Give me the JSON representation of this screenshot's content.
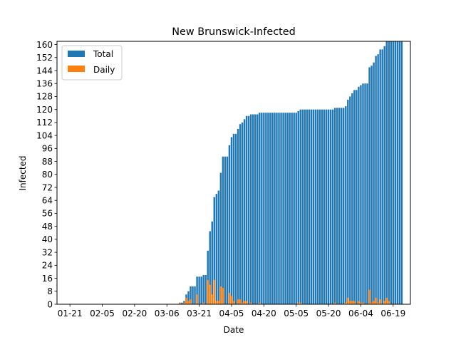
{
  "chart_data": {
    "type": "bar",
    "title": "New Brunswick-Infected",
    "xlabel": "Date",
    "ylabel": "Infected",
    "xlim": [
      "2020-01-15",
      "2020-06-27"
    ],
    "ylim": [
      0,
      162
    ],
    "y_ticks": [
      0,
      8,
      16,
      24,
      32,
      40,
      48,
      56,
      64,
      72,
      80,
      88,
      96,
      104,
      112,
      120,
      128,
      136,
      144,
      152,
      160
    ],
    "x_tick_labels": [
      "01-21",
      "02-05",
      "02-20",
      "03-06",
      "03-21",
      "04-05",
      "04-20",
      "05-05",
      "05-20",
      "06-04",
      "06-19"
    ],
    "x_tick_dates": [
      "2020-01-21",
      "2020-02-05",
      "2020-02-20",
      "2020-03-06",
      "2020-03-21",
      "2020-04-05",
      "2020-04-20",
      "2020-05-05",
      "2020-05-20",
      "2020-06-04",
      "2020-06-19"
    ],
    "grid": false,
    "legend_position": "top-left",
    "x": [
      "2020-01-22",
      "2020-01-23",
      "2020-01-24",
      "2020-01-25",
      "2020-01-26",
      "2020-01-27",
      "2020-01-28",
      "2020-01-29",
      "2020-01-30",
      "2020-01-31",
      "2020-02-01",
      "2020-02-02",
      "2020-02-03",
      "2020-02-04",
      "2020-02-05",
      "2020-02-06",
      "2020-02-07",
      "2020-02-08",
      "2020-02-09",
      "2020-02-10",
      "2020-02-11",
      "2020-02-12",
      "2020-02-13",
      "2020-02-14",
      "2020-02-15",
      "2020-02-16",
      "2020-02-17",
      "2020-02-18",
      "2020-02-19",
      "2020-02-20",
      "2020-02-21",
      "2020-02-22",
      "2020-02-23",
      "2020-02-24",
      "2020-02-25",
      "2020-02-26",
      "2020-02-27",
      "2020-02-28",
      "2020-02-29",
      "2020-03-01",
      "2020-03-02",
      "2020-03-03",
      "2020-03-04",
      "2020-03-05",
      "2020-03-06",
      "2020-03-07",
      "2020-03-08",
      "2020-03-09",
      "2020-03-10",
      "2020-03-11",
      "2020-03-12",
      "2020-03-13",
      "2020-03-14",
      "2020-03-15",
      "2020-03-16",
      "2020-03-17",
      "2020-03-18",
      "2020-03-19",
      "2020-03-20",
      "2020-03-21",
      "2020-03-22",
      "2020-03-23",
      "2020-03-24",
      "2020-03-25",
      "2020-03-26",
      "2020-03-27",
      "2020-03-28",
      "2020-03-29",
      "2020-03-30",
      "2020-03-31",
      "2020-04-01",
      "2020-04-02",
      "2020-04-03",
      "2020-04-04",
      "2020-04-05",
      "2020-04-06",
      "2020-04-07",
      "2020-04-08",
      "2020-04-09",
      "2020-04-10",
      "2020-04-11",
      "2020-04-12",
      "2020-04-13",
      "2020-04-14",
      "2020-04-15",
      "2020-04-16",
      "2020-04-17",
      "2020-04-18",
      "2020-04-19",
      "2020-04-20",
      "2020-04-21",
      "2020-04-22",
      "2020-04-23",
      "2020-04-24",
      "2020-04-25",
      "2020-04-26",
      "2020-04-27",
      "2020-04-28",
      "2020-04-29",
      "2020-04-30",
      "2020-05-01",
      "2020-05-02",
      "2020-05-03",
      "2020-05-04",
      "2020-05-05",
      "2020-05-06",
      "2020-05-07",
      "2020-05-08",
      "2020-05-09",
      "2020-05-10",
      "2020-05-11",
      "2020-05-12",
      "2020-05-13",
      "2020-05-14",
      "2020-05-15",
      "2020-05-16",
      "2020-05-17",
      "2020-05-18",
      "2020-05-19",
      "2020-05-20",
      "2020-05-21",
      "2020-05-22",
      "2020-05-23",
      "2020-05-24",
      "2020-05-25",
      "2020-05-26",
      "2020-05-27",
      "2020-05-28",
      "2020-05-29",
      "2020-05-30",
      "2020-05-31",
      "2020-06-01",
      "2020-06-02",
      "2020-06-03",
      "2020-06-04",
      "2020-06-05",
      "2020-06-06",
      "2020-06-07",
      "2020-06-08",
      "2020-06-09",
      "2020-06-10",
      "2020-06-11",
      "2020-06-12",
      "2020-06-13",
      "2020-06-14",
      "2020-06-15",
      "2020-06-16",
      "2020-06-17",
      "2020-06-18",
      "2020-06-19",
      "2020-06-20",
      "2020-06-21",
      "2020-06-22",
      "2020-06-23"
    ],
    "series": [
      {
        "name": "Total",
        "color": "#1f77b4",
        "values": [
          0,
          0,
          0,
          0,
          0,
          0,
          0,
          0,
          0,
          0,
          0,
          0,
          0,
          0,
          0,
          0,
          0,
          0,
          0,
          0,
          0,
          0,
          0,
          0,
          0,
          0,
          0,
          0,
          0,
          0,
          0,
          0,
          0,
          0,
          0,
          0,
          0,
          0,
          0,
          0,
          0,
          0,
          0,
          0,
          0,
          0,
          0,
          0,
          0,
          0,
          1,
          1,
          2,
          6,
          8,
          11,
          11,
          11,
          17,
          17,
          17,
          18,
          18,
          33,
          45,
          51,
          66,
          68,
          70,
          81,
          91,
          91,
          91,
          98,
          103,
          105,
          105,
          108,
          111,
          112,
          114,
          116,
          116,
          117,
          117,
          117,
          117,
          118,
          118,
          118,
          118,
          118,
          118,
          118,
          118,
          118,
          118,
          118,
          118,
          118,
          118,
          118,
          118,
          118,
          118,
          119,
          120,
          120,
          120,
          120,
          120,
          120,
          120,
          120,
          120,
          120,
          120,
          120,
          120,
          120,
          120,
          120,
          121,
          121,
          121,
          121,
          121,
          122,
          126,
          128,
          130,
          132,
          132,
          134,
          135,
          136,
          136,
          136,
          146,
          147,
          149,
          153,
          154,
          157,
          157,
          159,
          163,
          165,
          165,
          165,
          165,
          165,
          165,
          165
        ]
      },
      {
        "name": "Daily",
        "color": "#ff7f0e",
        "values": [
          0,
          0,
          0,
          0,
          0,
          0,
          0,
          0,
          0,
          0,
          0,
          0,
          0,
          0,
          0,
          0,
          0,
          0,
          0,
          0,
          0,
          0,
          0,
          0,
          0,
          0,
          0,
          0,
          0,
          0,
          0,
          0,
          0,
          0,
          0,
          0,
          0,
          0,
          0,
          0,
          0,
          0,
          0,
          0,
          0,
          0,
          0,
          0,
          0,
          0,
          1,
          0,
          1,
          4,
          2,
          3,
          0,
          0,
          6,
          0,
          0,
          1,
          0,
          15,
          12,
          6,
          15,
          2,
          2,
          11,
          10,
          0,
          0,
          7,
          5,
          2,
          0,
          3,
          3,
          1,
          2,
          2,
          0,
          1,
          0,
          0,
          0,
          1,
          0,
          0,
          0,
          0,
          0,
          0,
          0,
          0,
          0,
          0,
          0,
          0,
          0,
          0,
          0,
          0,
          0,
          1,
          1,
          0,
          0,
          0,
          0,
          0,
          0,
          0,
          0,
          0,
          0,
          0,
          0,
          0,
          0,
          0,
          1,
          0,
          0,
          0,
          0,
          1,
          4,
          2,
          2,
          2,
          0,
          2,
          1,
          1,
          0,
          0,
          9,
          1,
          2,
          4,
          1,
          3,
          0,
          2,
          4,
          2,
          0,
          0,
          0,
          0,
          0,
          0
        ]
      }
    ]
  }
}
